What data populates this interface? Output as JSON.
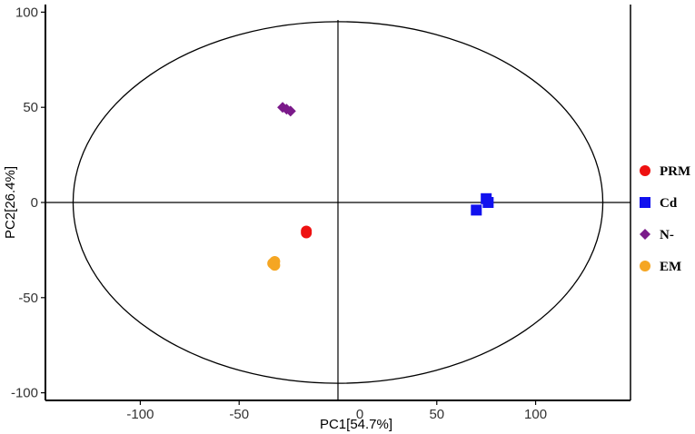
{
  "chart_data": {
    "type": "scatter",
    "xlabel": "PC1[54.7%]",
    "ylabel": "PC2[26.4%]",
    "xlim": [
      -148,
      148
    ],
    "ylim": [
      -104,
      104
    ],
    "x_ticks": [
      -100,
      -50,
      0,
      50,
      100
    ],
    "y_ticks": [
      -100,
      -50,
      0,
      50,
      100
    ],
    "x_tick_labels": [
      "-100",
      "-50",
      "0",
      "50",
      "100"
    ],
    "y_tick_labels": [
      "-100",
      "-50",
      "0",
      "50",
      "100"
    ],
    "grid": false,
    "reference_lines": {
      "x": 0,
      "y": 0
    },
    "ellipse": {
      "cx": 0,
      "cy": 0,
      "rx": 134,
      "ry": 95
    },
    "legend_position": "right",
    "series": [
      {
        "name": "PRM",
        "marker": "circle",
        "color": "#ee1111",
        "points": [
          {
            "x": -16,
            "y": -16
          },
          {
            "x": -16,
            "y": -15
          }
        ]
      },
      {
        "name": "Cd",
        "marker": "square",
        "color": "#1111ee",
        "points": [
          {
            "x": 75,
            "y": 2
          },
          {
            "x": 76,
            "y": 0
          },
          {
            "x": 70,
            "y": -4
          }
        ]
      },
      {
        "name": "N-",
        "marker": "diamond",
        "color": "#7b1a8a",
        "points": [
          {
            "x": -28,
            "y": 50
          },
          {
            "x": -24,
            "y": 48
          },
          {
            "x": -26,
            "y": 49
          }
        ]
      },
      {
        "name": "EM",
        "marker": "circle",
        "color": "#f5a623",
        "points": [
          {
            "x": -32,
            "y": -31
          },
          {
            "x": -32,
            "y": -33
          },
          {
            "x": -33,
            "y": -32
          }
        ]
      }
    ]
  }
}
